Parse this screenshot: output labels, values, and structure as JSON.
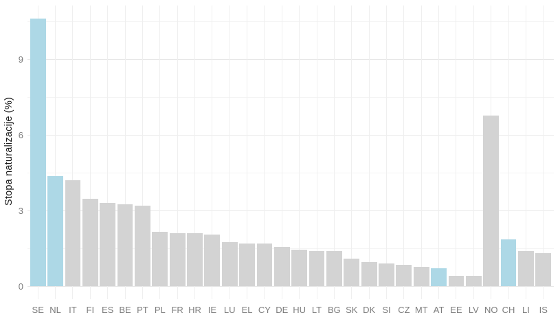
{
  "chart_data": {
    "type": "bar",
    "title": "",
    "xlabel": "",
    "ylabel": "Stopa naturalizacije (%)",
    "categories": [
      "SE",
      "NL",
      "IT",
      "FI",
      "ES",
      "BE",
      "PT",
      "PL",
      "FR",
      "HR",
      "IE",
      "LU",
      "EL",
      "CY",
      "DE",
      "HU",
      "LT",
      "BG",
      "SK",
      "DK",
      "SI",
      "CZ",
      "MT",
      "AT",
      "EE",
      "LV",
      "NO",
      "CH",
      "LI",
      "IS"
    ],
    "values": [
      10.6,
      4.35,
      4.2,
      3.45,
      3.3,
      3.25,
      3.2,
      2.15,
      2.1,
      2.1,
      2.05,
      1.75,
      1.7,
      1.7,
      1.55,
      1.45,
      1.4,
      1.4,
      1.1,
      0.95,
      0.9,
      0.85,
      0.75,
      0.7,
      0.4,
      0.4,
      6.75,
      1.85,
      1.4,
      1.3
    ],
    "highlighted_categories": [
      "SE",
      "NL",
      "AT",
      "CH"
    ],
    "y_ticks": [
      0,
      3,
      6,
      9
    ],
    "y_minor_ticks": [
      1.5,
      4.5,
      7.5,
      10.5
    ],
    "ylim": [
      -0.53,
      11.12
    ],
    "grid": true,
    "legend": false,
    "colors": {
      "bar_default": "#d3d3d3",
      "bar_highlight": "#add8e6",
      "grid_major": "#e7e7e7",
      "grid_minor": "#f3f3f3",
      "axis_text": "#7c7c7c",
      "axis_title": "#1a1a1a"
    }
  }
}
